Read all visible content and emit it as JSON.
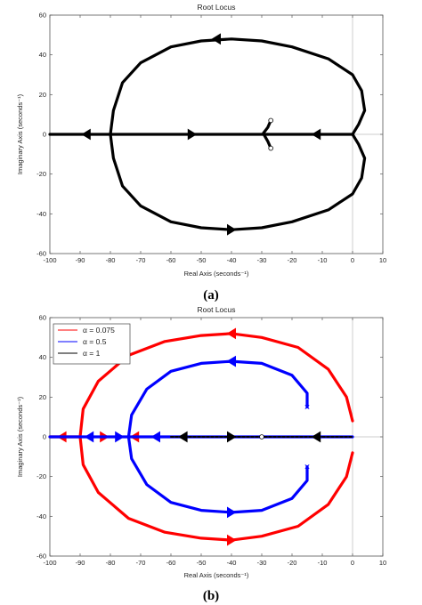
{
  "chart_data": [
    {
      "type": "line",
      "panel_label": "(a)",
      "title": "Root Locus",
      "xlabel": "Real Axis (seconds⁻¹)",
      "ylabel": "Imaginary Axis (seconds⁻¹)",
      "xlim": [
        -100,
        10
      ],
      "ylim": [
        -60,
        60
      ],
      "xticks": [
        -100,
        -90,
        -80,
        -70,
        -60,
        -50,
        -40,
        -30,
        -20,
        -10,
        0,
        10
      ],
      "yticks": [
        -60,
        -40,
        -20,
        0,
        20,
        40,
        60
      ],
      "xtick_labels": [
        "-100",
        "-90",
        "-80",
        "-70",
        "-60",
        "-50",
        "-40",
        "-30",
        "-20",
        "-10",
        "0",
        "10"
      ],
      "ytick_labels": [
        "-60",
        "-40",
        "-20",
        "0",
        "20",
        "40",
        "60"
      ],
      "grid": false,
      "series": [
        {
          "color": "#000000",
          "branches": [
            [
              [
                0,
                0
              ],
              [
                2,
                5
              ],
              [
                4,
                12
              ],
              [
                3,
                22
              ],
              [
                0,
                30
              ],
              [
                -8,
                38
              ],
              [
                -20,
                44
              ],
              [
                -30,
                47
              ],
              [
                -40,
                48
              ],
              [
                -50,
                47
              ],
              [
                -60,
                44
              ],
              [
                -70,
                36
              ],
              [
                -76,
                26
              ],
              [
                -79,
                12
              ],
              [
                -80,
                0
              ]
            ],
            [
              [
                0,
                0
              ],
              [
                2,
                -5
              ],
              [
                4,
                -12
              ],
              [
                3,
                -22
              ],
              [
                0,
                -30
              ],
              [
                -8,
                -38
              ],
              [
                -20,
                -44
              ],
              [
                -30,
                -47
              ],
              [
                -40,
                -48
              ],
              [
                -50,
                -47
              ],
              [
                -60,
                -44
              ],
              [
                -70,
                -36
              ],
              [
                -76,
                -26
              ],
              [
                -79,
                -12
              ],
              [
                -80,
                0
              ]
            ],
            [
              [
                -80,
                0
              ],
              [
                -100,
                0
              ]
            ],
            [
              [
                -80,
                0
              ],
              [
                -28,
                0
              ]
            ],
            [
              [
                0,
                0
              ],
              [
                -28,
                0
              ]
            ],
            [
              [
                -27,
                7
              ],
              [
                -28,
                3.5
              ],
              [
                -29.5,
                0.5
              ],
              [
                -28,
                -3.5
              ],
              [
                -27,
                -7
              ]
            ]
          ],
          "arrows": [
            {
              "x": -45,
              "y": 48,
              "dir": "left"
            },
            {
              "x": -40,
              "y": -48,
              "dir": "right"
            },
            {
              "x": -88,
              "y": 0,
              "dir": "left"
            },
            {
              "x": -53,
              "y": 0,
              "dir": "right"
            },
            {
              "x": -12,
              "y": 0,
              "dir": "left"
            }
          ],
          "zeros": [
            [
              -27,
              7
            ],
            [
              -27,
              -7
            ]
          ]
        }
      ]
    },
    {
      "type": "line",
      "panel_label": "(b)",
      "title": "Root Locus",
      "xlabel": "Real Axis (seconds⁻¹)",
      "ylabel": "Imaginary Axis (seconds⁻¹)",
      "xlim": [
        -100,
        10
      ],
      "ylim": [
        -60,
        60
      ],
      "xticks": [
        -100,
        -90,
        -80,
        -70,
        -60,
        -50,
        -40,
        -30,
        -20,
        -10,
        0,
        10
      ],
      "yticks": [
        -60,
        -40,
        -20,
        0,
        20,
        40,
        60
      ],
      "xtick_labels": [
        "-100",
        "-90",
        "-80",
        "-70",
        "-60",
        "-50",
        "-40",
        "-30",
        "-20",
        "-10",
        "0",
        "10"
      ],
      "ytick_labels": [
        "-60",
        "-40",
        "-20",
        "0",
        "20",
        "40",
        "60"
      ],
      "grid": false,
      "legend": {
        "placement": "top-left",
        "entries": [
          {
            "label": "α = 0.075",
            "color": "#ff0000"
          },
          {
            "label": "α = 0.5",
            "color": "#0000ff"
          },
          {
            "label": "α = 1",
            "color": "#000000"
          }
        ]
      },
      "series": [
        {
          "name": "α = 0.075",
          "color": "#ff0000",
          "branches": [
            [
              [
                0,
                8
              ],
              [
                -2,
                20
              ],
              [
                -8,
                34
              ],
              [
                -18,
                45
              ],
              [
                -30,
                50
              ],
              [
                -40,
                52
              ],
              [
                -50,
                51
              ],
              [
                -62,
                48
              ],
              [
                -74,
                41
              ],
              [
                -84,
                28
              ],
              [
                -89,
                14
              ],
              [
                -90,
                0
              ],
              [
                -89,
                -14
              ],
              [
                -84,
                -28
              ],
              [
                -74,
                -41
              ],
              [
                -62,
                -48
              ],
              [
                -50,
                -51
              ],
              [
                -40,
                -52
              ],
              [
                -30,
                -50
              ],
              [
                -18,
                -45
              ],
              [
                -8,
                -34
              ],
              [
                -2,
                -20
              ],
              [
                0,
                -8
              ]
            ],
            [
              [
                -90,
                0
              ],
              [
                -100,
                0
              ]
            ]
          ],
          "arrows": [
            {
              "x": -40,
              "y": 52,
              "dir": "left"
            },
            {
              "x": -40,
              "y": -52,
              "dir": "right"
            },
            {
              "x": -96,
              "y": 0,
              "dir": "left"
            },
            {
              "x": -82,
              "y": 0,
              "dir": "right"
            },
            {
              "x": -72,
              "y": 0,
              "dir": "left"
            }
          ]
        },
        {
          "name": "α = 0.5",
          "color": "#0000ff",
          "branches": [
            [
              [
                -15,
                15
              ],
              [
                -15,
                22
              ],
              [
                -20,
                31
              ],
              [
                -30,
                37
              ],
              [
                -40,
                38
              ],
              [
                -50,
                37
              ],
              [
                -60,
                33
              ],
              [
                -68,
                24
              ],
              [
                -73,
                11
              ],
              [
                -74,
                0
              ],
              [
                -73,
                -11
              ],
              [
                -68,
                -24
              ],
              [
                -60,
                -33
              ],
              [
                -50,
                -37
              ],
              [
                -40,
                -38
              ],
              [
                -30,
                -37
              ],
              [
                -20,
                -31
              ],
              [
                -15,
                -22
              ],
              [
                -15,
                -15
              ]
            ],
            [
              [
                -74,
                0
              ],
              [
                -100,
                0
              ]
            ],
            [
              [
                -74,
                0
              ],
              [
                0,
                0
              ]
            ]
          ],
          "arrows": [
            {
              "x": -40,
              "y": 38,
              "dir": "left"
            },
            {
              "x": -40,
              "y": -38,
              "dir": "right"
            },
            {
              "x": -87,
              "y": 0,
              "dir": "left"
            },
            {
              "x": -77,
              "y": 0,
              "dir": "right"
            },
            {
              "x": -65,
              "y": 0,
              "dir": "left"
            }
          ],
          "poles": [
            [
              -15,
              15
            ],
            [
              -15,
              -15
            ]
          ]
        },
        {
          "name": "α = 1",
          "color": "#000000",
          "dashed": true,
          "branches": [
            [
              [
                -60,
                0
              ],
              [
                0,
                0
              ]
            ]
          ],
          "arrows": [
            {
              "x": -56,
              "y": 0,
              "dir": "left"
            },
            {
              "x": -40,
              "y": 0,
              "dir": "right"
            },
            {
              "x": -12,
              "y": 0,
              "dir": "left"
            }
          ],
          "zeros": [
            [
              -30,
              0
            ]
          ]
        }
      ]
    }
  ]
}
